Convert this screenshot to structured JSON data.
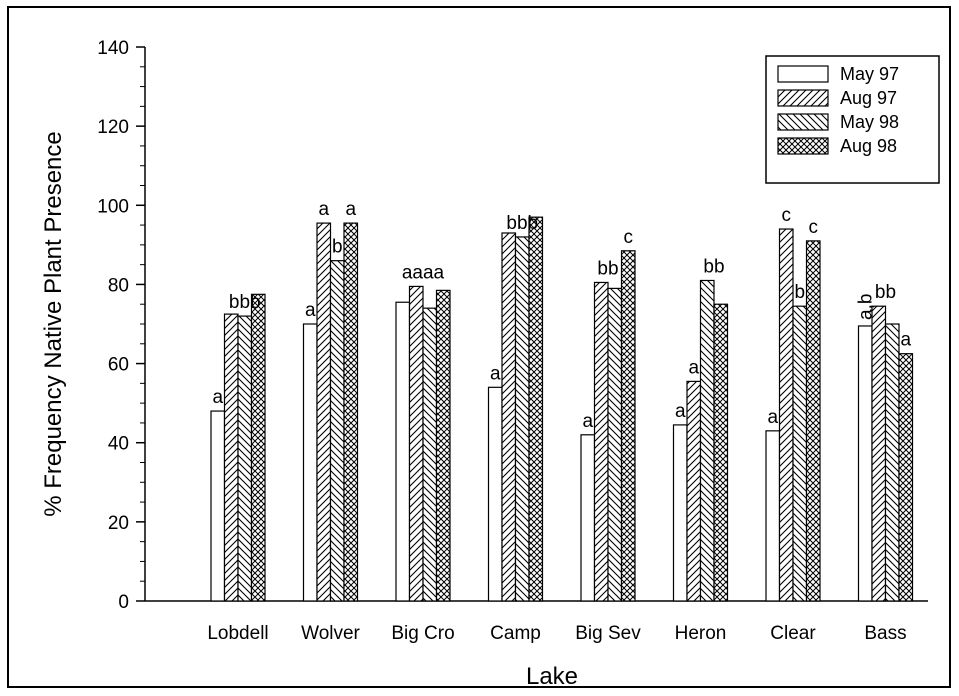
{
  "chart_data": {
    "type": "bar",
    "title": "",
    "xlabel": "Lake",
    "ylabel": "% Frequency Native Plant Presence",
    "ylim": [
      0,
      140
    ],
    "yticks": [
      0,
      20,
      40,
      60,
      80,
      100,
      120,
      140
    ],
    "grid": false,
    "legend_position": "top-right",
    "categories": [
      "Lobdell",
      "Wolver",
      "Big Cro",
      "Camp",
      "Big Sev",
      "Heron",
      "Clear",
      "Bass"
    ],
    "series": [
      {
        "name": "May 97",
        "pattern": "none",
        "values": [
          48,
          70,
          75.5,
          54,
          42,
          44.5,
          43,
          69.5
        ]
      },
      {
        "name": "Aug 97",
        "pattern": "diag-up",
        "values": [
          72.5,
          95.5,
          79.5,
          93,
          80.5,
          55.5,
          94,
          74.5
        ]
      },
      {
        "name": "May 98",
        "pattern": "diag-down",
        "values": [
          72,
          86,
          74,
          92,
          79,
          81,
          74.5,
          70
        ]
      },
      {
        "name": "Aug 98",
        "pattern": "crosshatch",
        "values": [
          77.5,
          95.5,
          78.5,
          97,
          88.5,
          75,
          91,
          62.5
        ]
      }
    ],
    "annotations": [
      {
        "category": "Lobdell",
        "series": 0,
        "text": "a"
      },
      {
        "category": "Lobdell",
        "series": 2,
        "text": "bbb"
      },
      {
        "category": "Wolver",
        "series": 0,
        "text": "a"
      },
      {
        "category": "Wolver",
        "series": 1,
        "text": "a"
      },
      {
        "category": "Wolver",
        "series": 2,
        "text": "b"
      },
      {
        "category": "Wolver",
        "series": 3,
        "text": "a"
      },
      {
        "category": "Big Cro",
        "series": 1.5,
        "text": "aaaa"
      },
      {
        "category": "Camp",
        "series": 0,
        "text": "a"
      },
      {
        "category": "Camp",
        "series": 2,
        "text": "bbb"
      },
      {
        "category": "Big Sev",
        "series": 0,
        "text": "a"
      },
      {
        "category": "Big Sev",
        "series": 1.5,
        "text": "bb"
      },
      {
        "category": "Big Sev",
        "series": 3,
        "text": "c"
      },
      {
        "category": "Heron",
        "series": 0,
        "text": "a"
      },
      {
        "category": "Heron",
        "series": 1,
        "text": "a"
      },
      {
        "category": "Heron",
        "series": 2.5,
        "text": "bb"
      },
      {
        "category": "Clear",
        "series": 0,
        "text": "a"
      },
      {
        "category": "Clear",
        "series": 1,
        "text": "c"
      },
      {
        "category": "Clear",
        "series": 2,
        "text": "b"
      },
      {
        "category": "Clear",
        "series": 3,
        "text": "c"
      },
      {
        "category": "Bass",
        "series": 0,
        "text": "a,b",
        "vertical": true
      },
      {
        "category": "Bass",
        "series": 1.5,
        "text": "bb"
      },
      {
        "category": "Bass",
        "series": 3,
        "text": "a"
      }
    ]
  }
}
